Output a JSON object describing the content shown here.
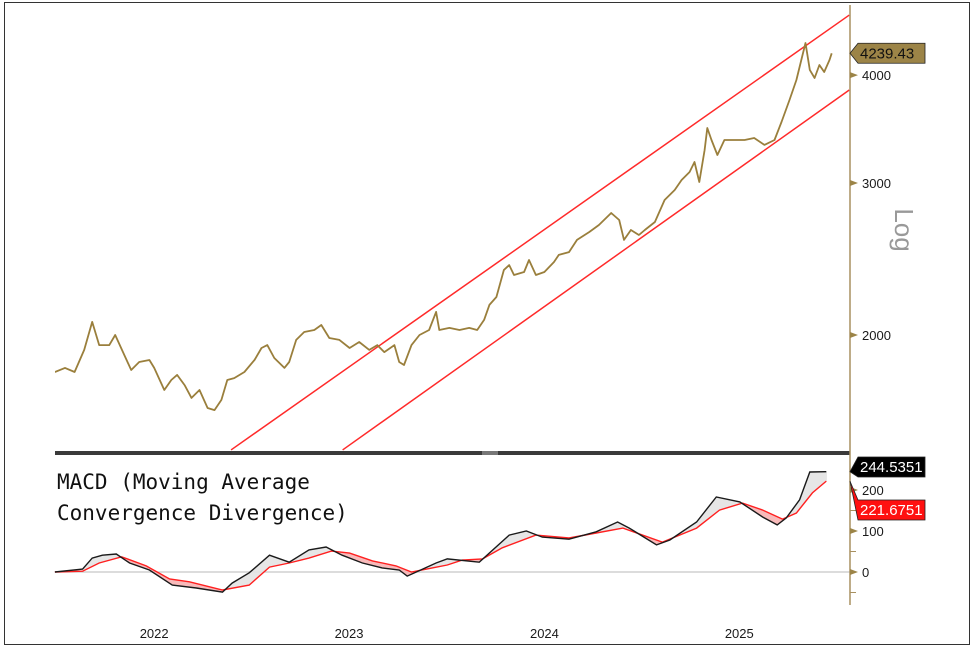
{
  "chart_data": [
    {
      "type": "line",
      "scale": "log",
      "ylabel": "Log",
      "yticks": [
        2000,
        3000,
        4000
      ],
      "ytick_labels": [
        "2000",
        "3000",
        "4000"
      ],
      "ylim": [
        1472,
        4694
      ],
      "xlim": [
        "2021-12-28",
        "2026-01-24"
      ],
      "grid": false,
      "last_value_label": "4239.43",
      "colors": {
        "price": "#9a7f3c",
        "channel": "#ff2a2a",
        "badge": "#9c8447"
      },
      "series": [
        {
          "points": [
            [
              "2021-12-28",
              1812
            ],
            [
              "2022-01-16",
              1832
            ],
            [
              "2022-02-03",
              1812
            ],
            [
              "2022-02-21",
              1922
            ],
            [
              "2022-03-08",
              2071
            ],
            [
              "2022-03-21",
              1947
            ],
            [
              "2022-04-09",
              1947
            ],
            [
              "2022-04-20",
              2000
            ],
            [
              "2022-05-07",
              1896
            ],
            [
              "2022-05-20",
              1822
            ],
            [
              "2022-06-04",
              1861
            ],
            [
              "2022-06-23",
              1871
            ],
            [
              "2022-07-02",
              1832
            ],
            [
              "2022-07-21",
              1727
            ],
            [
              "2022-08-03",
              1774
            ],
            [
              "2022-08-14",
              1798
            ],
            [
              "2022-08-28",
              1750
            ],
            [
              "2022-09-10",
              1691
            ],
            [
              "2022-09-25",
              1727
            ],
            [
              "2022-10-10",
              1646
            ],
            [
              "2022-10-23",
              1637
            ],
            [
              "2022-11-05",
              1682
            ],
            [
              "2022-11-16",
              1774
            ],
            [
              "2022-11-29",
              1783
            ],
            [
              "2022-12-18",
              1812
            ],
            [
              "2023-01-06",
              1871
            ],
            [
              "2023-01-19",
              1932
            ],
            [
              "2023-01-30",
              1947
            ],
            [
              "2023-02-12",
              1881
            ],
            [
              "2023-03-03",
              1832
            ],
            [
              "2023-03-12",
              1861
            ],
            [
              "2023-03-25",
              1974
            ],
            [
              "2023-04-09",
              2016
            ],
            [
              "2023-04-28",
              2027
            ],
            [
              "2023-05-11",
              2054
            ],
            [
              "2023-05-26",
              1984
            ],
            [
              "2023-06-14",
              1974
            ],
            [
              "2023-07-03",
              1932
            ],
            [
              "2023-07-21",
              1963
            ],
            [
              "2023-08-09",
              1922
            ],
            [
              "2023-08-24",
              1947
            ],
            [
              "2023-09-06",
              1911
            ],
            [
              "2023-09-25",
              1947
            ],
            [
              "2023-10-04",
              1861
            ],
            [
              "2023-10-13",
              1846
            ],
            [
              "2023-10-27",
              1947
            ],
            [
              "2023-11-11",
              2000
            ],
            [
              "2023-11-29",
              2027
            ],
            [
              "2023-12-12",
              2127
            ],
            [
              "2023-12-18",
              2027
            ],
            [
              "2024-01-06",
              2038
            ],
            [
              "2024-01-25",
              2027
            ],
            [
              "2024-02-12",
              2038
            ],
            [
              "2024-02-27",
              2027
            ],
            [
              "2024-03-11",
              2082
            ],
            [
              "2024-03-21",
              2167
            ],
            [
              "2024-04-03",
              2213
            ],
            [
              "2024-04-17",
              2379
            ],
            [
              "2024-04-27",
              2410
            ],
            [
              "2024-05-06",
              2347
            ],
            [
              "2024-05-25",
              2366
            ],
            [
              "2024-06-03",
              2443
            ],
            [
              "2024-06-16",
              2347
            ],
            [
              "2024-07-02",
              2366
            ],
            [
              "2024-07-20",
              2430
            ],
            [
              "2024-07-29",
              2476
            ],
            [
              "2024-08-17",
              2495
            ],
            [
              "2024-09-01",
              2577
            ],
            [
              "2024-09-24",
              2632
            ],
            [
              "2024-10-12",
              2682
            ],
            [
              "2024-11-04",
              2769
            ],
            [
              "2024-11-19",
              2718
            ],
            [
              "2024-11-28",
              2577
            ],
            [
              "2024-12-11",
              2646
            ],
            [
              "2024-12-26",
              2611
            ],
            [
              "2025-01-06",
              2646
            ],
            [
              "2025-01-25",
              2703
            ],
            [
              "2025-02-12",
              2867
            ],
            [
              "2025-03-03",
              2944
            ],
            [
              "2025-03-16",
              3024
            ],
            [
              "2025-03-31",
              3089
            ],
            [
              "2025-04-09",
              3172
            ],
            [
              "2025-04-18",
              3008
            ],
            [
              "2025-04-28",
              3275
            ],
            [
              "2025-05-03",
              3473
            ],
            [
              "2025-05-11",
              3364
            ],
            [
              "2025-05-22",
              3232
            ],
            [
              "2025-06-04",
              3364
            ],
            [
              "2025-06-23",
              3364
            ],
            [
              "2025-07-12",
              3364
            ],
            [
              "2025-07-30",
              3382
            ],
            [
              "2025-08-18",
              3320
            ],
            [
              "2025-09-06",
              3364
            ],
            [
              "2025-09-19",
              3529
            ],
            [
              "2025-10-04",
              3743
            ],
            [
              "2025-10-17",
              3948
            ],
            [
              "2025-10-27",
              4186
            ],
            [
              "2025-11-03",
              4357
            ],
            [
              "2025-11-11",
              4055
            ],
            [
              "2025-11-20",
              3969
            ],
            [
              "2025-11-29",
              4109
            ],
            [
              "2025-12-08",
              4033
            ],
            [
              "2025-12-18",
              4164
            ],
            [
              "2025-12-22",
              4239.43
            ]
          ]
        }
      ],
      "channel_lines": [
        {
          "from": [
            "2022-11-23",
            1472
          ],
          "to": [
            "2026-01-24",
            4694
          ]
        },
        {
          "from": [
            "2023-06-20",
            1472
          ],
          "to": [
            "2026-01-24",
            3844
          ]
        }
      ]
    },
    {
      "type": "line",
      "title": "MACD (Moving Average Convergence Divergence)",
      "title_lines": [
        "MACD (Moving Average",
        "Convergence Divergence)"
      ],
      "yticks": [
        0,
        100,
        200
      ],
      "ytick_labels": [
        "0",
        "100",
        "200"
      ],
      "xtick_labels": [
        "2022",
        "2023",
        "2024",
        "2025"
      ],
      "xticks": [
        "2022-07-02",
        "2023-07-02",
        "2024-07-02",
        "2025-07-02"
      ],
      "ylim": [
        -75,
        275
      ],
      "grid": false,
      "last_value_labels": {
        "macd": "244.5351",
        "signal": "221.6751"
      },
      "colors": {
        "macd": "#1a1a1a",
        "signal": "#ff2020",
        "fill_above": "#e4e4e4",
        "fill_below": "#f7b3b3",
        "zero": "#c8c8c8"
      },
      "series": [
        {
          "key": "macd",
          "points": [
            [
              "2021-12-28",
              0
            ],
            [
              "2022-02-18",
              7
            ],
            [
              "2022-03-08",
              34
            ],
            [
              "2022-03-27",
              41
            ],
            [
              "2022-04-22",
              44
            ],
            [
              "2022-05-17",
              22
            ],
            [
              "2022-06-23",
              5
            ],
            [
              "2022-08-05",
              -32
            ],
            [
              "2022-09-19",
              -39
            ],
            [
              "2022-11-07",
              -49
            ],
            [
              "2022-11-25",
              -27
            ],
            [
              "2022-12-27",
              -2
            ],
            [
              "2023-02-03",
              41
            ],
            [
              "2023-03-12",
              24
            ],
            [
              "2023-04-18",
              54
            ],
            [
              "2023-05-20",
              61
            ],
            [
              "2023-06-19",
              41
            ],
            [
              "2023-07-27",
              22
            ],
            [
              "2023-09-02",
              10
            ],
            [
              "2023-10-04",
              5
            ],
            [
              "2023-10-19",
              -10
            ],
            [
              "2023-11-05",
              0
            ],
            [
              "2023-12-12",
              22
            ],
            [
              "2024-01-02",
              32
            ],
            [
              "2024-03-02",
              24
            ],
            [
              "2024-04-27",
              90
            ],
            [
              "2024-05-29",
              100
            ],
            [
              "2024-06-28",
              85
            ],
            [
              "2024-08-17",
              80
            ],
            [
              "2024-10-07",
              98
            ],
            [
              "2024-11-16",
              122
            ],
            [
              "2024-12-08",
              107
            ],
            [
              "2025-01-28",
              66
            ],
            [
              "2025-02-22",
              78
            ],
            [
              "2025-04-13",
              122
            ],
            [
              "2025-05-20",
              183
            ],
            [
              "2025-07-03",
              171
            ],
            [
              "2025-08-15",
              134
            ],
            [
              "2025-09-11",
              115
            ],
            [
              "2025-09-28",
              132
            ],
            [
              "2025-10-23",
              176
            ],
            [
              "2025-11-11",
              244
            ],
            [
              "2025-12-12",
              244.5351
            ]
          ]
        },
        {
          "key": "signal",
          "points": [
            [
              "2021-12-28",
              0
            ],
            [
              "2022-02-18",
              2
            ],
            [
              "2022-03-21",
              22
            ],
            [
              "2022-05-02",
              37
            ],
            [
              "2022-06-17",
              15
            ],
            [
              "2022-07-31",
              -17
            ],
            [
              "2022-09-06",
              -24
            ],
            [
              "2022-11-07",
              -44
            ],
            [
              "2022-12-27",
              -32
            ],
            [
              "2023-02-03",
              12
            ],
            [
              "2023-03-12",
              22
            ],
            [
              "2023-04-18",
              34
            ],
            [
              "2023-05-30",
              51
            ],
            [
              "2023-07-03",
              46
            ],
            [
              "2023-08-15",
              27
            ],
            [
              "2023-09-28",
              15
            ],
            [
              "2023-10-27",
              0
            ],
            [
              "2023-12-05",
              10
            ],
            [
              "2024-01-02",
              17
            ],
            [
              "2024-01-30",
              29
            ],
            [
              "2024-03-08",
              32
            ],
            [
              "2024-04-14",
              59
            ],
            [
              "2024-06-16",
              90
            ],
            [
              "2024-08-17",
              83
            ],
            [
              "2024-10-07",
              95
            ],
            [
              "2024-11-26",
              107
            ],
            [
              "2025-02-08",
              73
            ],
            [
              "2025-04-13",
              107
            ],
            [
              "2025-05-26",
              151
            ],
            [
              "2025-07-08",
              168
            ],
            [
              "2025-08-15",
              151
            ],
            [
              "2025-09-21",
              129
            ],
            [
              "2025-10-17",
              144
            ],
            [
              "2025-11-16",
              193
            ],
            [
              "2025-12-12",
              221.6751
            ]
          ]
        }
      ]
    }
  ]
}
